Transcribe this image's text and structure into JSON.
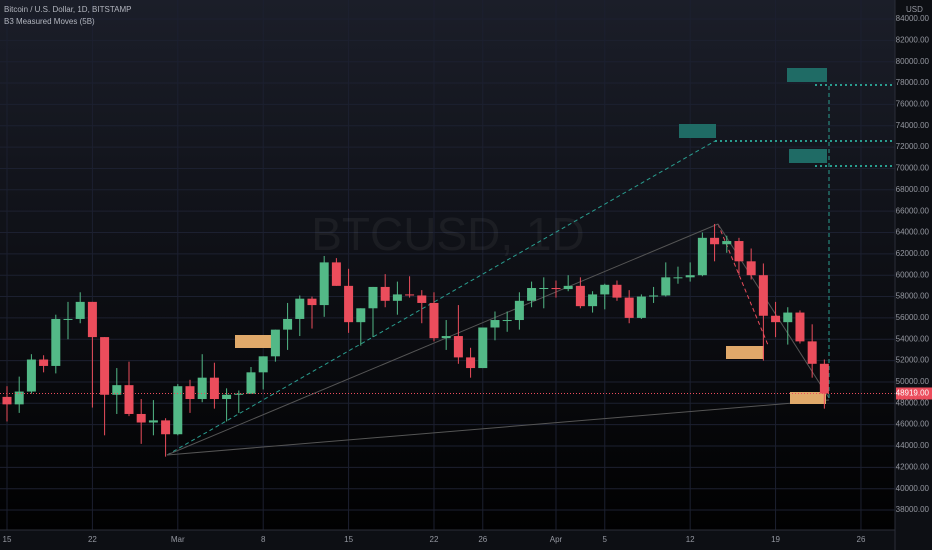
{
  "chart_data": {
    "type": "candlestick",
    "title": "Bitcoin / U.S. Dollar, 1D, BITSTAMP",
    "subtitle": "B3 Measured Moves (5B)",
    "watermark": "BTCUSD, 1D",
    "y_axis_label": "USD",
    "up_color": "#53b987",
    "down_color": "#eb4d5c",
    "x": [
      0,
      1,
      2,
      3,
      4,
      5,
      6,
      7,
      8,
      9,
      10,
      11,
      12,
      13,
      14,
      15,
      16,
      17,
      18,
      19,
      20,
      21,
      22,
      23,
      24,
      25,
      26,
      27,
      28,
      29,
      30,
      31,
      32,
      33,
      34,
      35,
      36,
      37,
      38,
      39,
      40,
      41,
      42,
      43,
      44,
      45,
      46,
      47,
      48,
      49,
      50,
      51,
      52,
      53,
      54,
      55,
      56,
      57,
      58,
      59,
      60,
      61,
      62,
      63,
      64,
      65,
      66,
      67
    ],
    "open": [
      48600,
      47900,
      49100,
      52100,
      51500,
      55900,
      55900,
      57500,
      54200,
      48800,
      49700,
      47000,
      46200,
      46400,
      45100,
      49600,
      48400,
      50400,
      48400,
      48800,
      48900,
      50900,
      52400,
      54900,
      55900,
      57800,
      57200,
      61200,
      59000,
      55600,
      56900,
      58900,
      57600,
      58200,
      58100,
      57400,
      54100,
      54300,
      52300,
      51300,
      55100,
      55800,
      55800,
      57600,
      58800,
      58800,
      58700,
      59000,
      57100,
      58200,
      59100,
      57900,
      56000,
      58000,
      58100,
      59800,
      59800,
      60000,
      63500,
      62900,
      63200,
      61300,
      60000,
      56200,
      55600,
      56500,
      53800,
      51700
    ],
    "high": [
      49600,
      50500,
      52600,
      52500,
      56300,
      57500,
      58400,
      57500,
      54200,
      51300,
      51900,
      48400,
      48300,
      46600,
      49800,
      50200,
      52600,
      51800,
      49400,
      49200,
      51400,
      52400,
      54900,
      57400,
      58100,
      58000,
      61800,
      61600,
      60600,
      56900,
      58900,
      60100,
      59400,
      59900,
      58600,
      58400,
      55800,
      57200,
      53200,
      55100,
      56600,
      56600,
      58400,
      59400,
      59800,
      59500,
      60000,
      59800,
      58500,
      59200,
      59500,
      58600,
      58200,
      58900,
      61200,
      60800,
      61200,
      64000,
      64800,
      63700,
      63500,
      62500,
      61100,
      57500,
      57000,
      56700,
      55400,
      52100
    ],
    "low": [
      46300,
      47100,
      48900,
      50900,
      50800,
      54000,
      55500,
      47600,
      45000,
      47000,
      46800,
      44200,
      45000,
      43000,
      45000,
      47100,
      48100,
      47500,
      46300,
      47100,
      48900,
      49300,
      51900,
      53000,
      54300,
      55000,
      56100,
      59000,
      54600,
      53400,
      54200,
      57000,
      56300,
      57900,
      55500,
      53800,
      53000,
      51700,
      50400,
      51300,
      53900,
      54700,
      54900,
      57000,
      56900,
      57900,
      58500,
      56900,
      56500,
      56800,
      57600,
      55500,
      55900,
      57400,
      58000,
      59200,
      59400,
      59900,
      61300,
      62100,
      60000,
      59600,
      52000,
      54200,
      53500,
      53600,
      50400,
      47500
    ],
    "close": [
      47900,
      49100,
      52100,
      51500,
      55900,
      55900,
      57500,
      54200,
      48800,
      49700,
      47000,
      46200,
      46400,
      45100,
      49600,
      48400,
      50400,
      48400,
      48800,
      48900,
      50900,
      52400,
      54900,
      55900,
      57800,
      57200,
      61200,
      59000,
      55600,
      56900,
      58900,
      57600,
      58200,
      58100,
      57400,
      54100,
      54300,
      52300,
      51300,
      55100,
      55800,
      55800,
      57600,
      58800,
      58800,
      58700,
      59000,
      57100,
      58200,
      59100,
      57900,
      56000,
      58000,
      58100,
      59800,
      59800,
      60000,
      63500,
      62900,
      63200,
      61300,
      60000,
      56200,
      55600,
      56500,
      53800,
      51700,
      48919
    ],
    "last_price": {
      "value": 48919,
      "label": "48919.00"
    },
    "xlim": [
      -0.574,
      72.79
    ],
    "xticks": [
      {
        "value": 0,
        "label": "15"
      },
      {
        "value": 7,
        "label": "22"
      },
      {
        "value": 14,
        "label": "Mar"
      },
      {
        "value": 21,
        "label": "8"
      },
      {
        "value": 28,
        "label": "15"
      },
      {
        "value": 35,
        "label": "22"
      },
      {
        "value": 39,
        "label": "26"
      },
      {
        "value": 45,
        "label": "Apr"
      },
      {
        "value": 49,
        "label": "5"
      },
      {
        "value": 56,
        "label": "12"
      },
      {
        "value": 63,
        "label": "19"
      },
      {
        "value": 70,
        "label": "26"
      }
    ],
    "ylim": [
      36130,
      85780
    ],
    "yticks": [
      {
        "value": 38000,
        "label": "38000.00"
      },
      {
        "value": 40000,
        "label": "40000.00"
      },
      {
        "value": 42000,
        "label": "42000.00"
      },
      {
        "value": 44000,
        "label": "44000.00"
      },
      {
        "value": 46000,
        "label": "46000.00"
      },
      {
        "value": 48000,
        "label": "48000.00"
      },
      {
        "value": 50000,
        "label": "50000.00"
      },
      {
        "value": 52000,
        "label": "52000.00"
      },
      {
        "value": 54000,
        "label": "54000.00"
      },
      {
        "value": 56000,
        "label": "56000.00"
      },
      {
        "value": 58000,
        "label": "58000.00"
      },
      {
        "value": 60000,
        "label": "60000.00"
      },
      {
        "value": 62000,
        "label": "62000.00"
      },
      {
        "value": 64000,
        "label": "64000.00"
      },
      {
        "value": 66000,
        "label": "66000.00"
      },
      {
        "value": 68000,
        "label": "68000.00"
      },
      {
        "value": 70000,
        "label": "70000.00"
      },
      {
        "value": 72000,
        "label": "72000.00"
      },
      {
        "value": 74000,
        "label": "74000.00"
      },
      {
        "value": 76000,
        "label": "76000.00"
      },
      {
        "value": 78000,
        "label": "78000.00"
      },
      {
        "value": 80000,
        "label": "80000.00"
      },
      {
        "value": 82000,
        "label": "82000.00"
      },
      {
        "value": 84000,
        "label": "84000.00"
      }
    ],
    "grid": true
  }
}
